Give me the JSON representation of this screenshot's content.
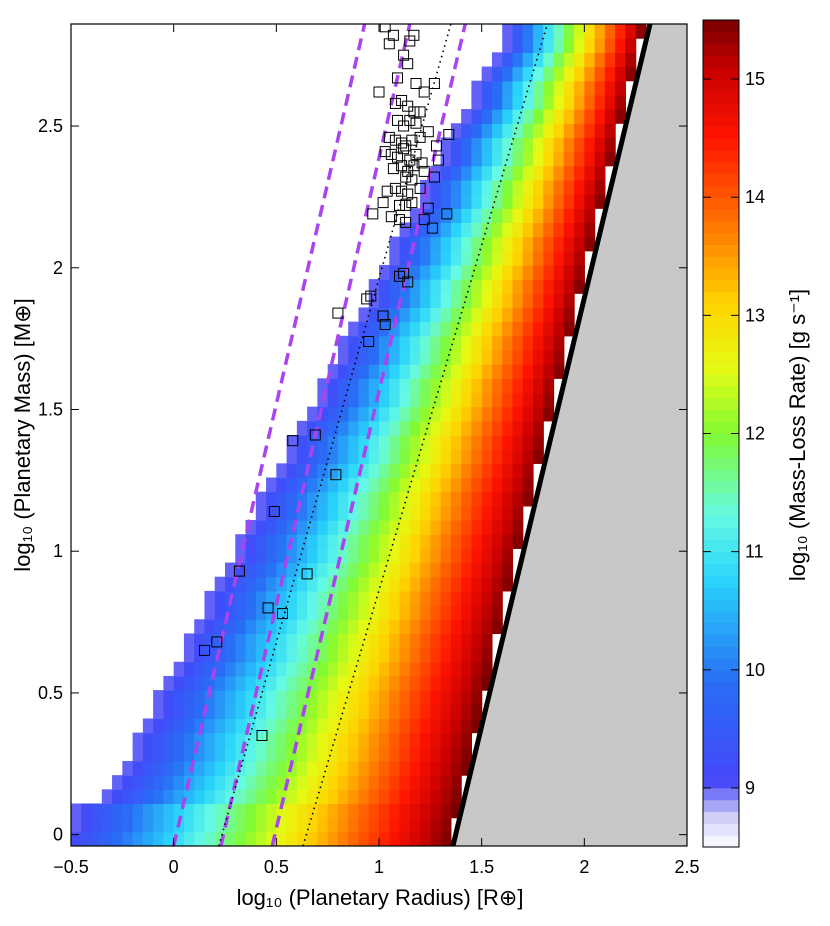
{
  "chart_data": {
    "type": "heatmap",
    "xlabel": "log₁₀ (Planetary Radius) [R⊕]",
    "ylabel": "log₁₀ (Planetary Mass) [M⊕]",
    "colorbar_label": "log₁₀ (Mass-Loss Rate) [g s⁻¹]",
    "xlim": [
      -0.5,
      2.5
    ],
    "ylim": [
      -0.04,
      2.86
    ],
    "colorbar_lim": [
      8.5,
      15.5
    ],
    "x_ticks": [
      -0.5,
      0,
      0.5,
      1,
      1.5,
      2,
      2.5
    ],
    "x_tick_labels": [
      "−0.5",
      "0",
      "0.5",
      "1",
      "1.5",
      "2",
      "2.5"
    ],
    "y_ticks": [
      0,
      0.5,
      1,
      1.5,
      2,
      2.5
    ],
    "y_tick_labels": [
      "0",
      "0.5",
      "1",
      "1.5",
      "2",
      "2.5"
    ],
    "colorbar_ticks": [
      9,
      10,
      11,
      12,
      13,
      14,
      15
    ],
    "colorbar_tick_labels": [
      "9",
      "10",
      "11",
      "12",
      "13",
      "14",
      "15"
    ],
    "colors": {
      "gray_region": "#c8c8c8",
      "dashed_lines": "#aa44ee",
      "solid_boundary": "#000000",
      "dotted_lines": "#000000"
    },
    "heatmap_model": {
      "description_of_fill": "mass-loss rate increases with radius at fixed mass",
      "rate_at_left_edge": 9.0,
      "rate_at_right_edge": 15.5
    },
    "boundary_solid_line": [
      [
        1.36,
        -0.04
      ],
      [
        2.32,
        2.86
      ]
    ],
    "dashed_lines": [
      [
        [
          0.0,
          -0.04
        ],
        [
          0.93,
          2.86
        ]
      ],
      [
        [
          0.23,
          -0.04
        ],
        [
          1.15,
          2.86
        ]
      ],
      [
        [
          0.48,
          -0.04
        ],
        [
          1.42,
          2.86
        ]
      ]
    ],
    "dotted_lines": [
      [
        [
          0.22,
          -0.04
        ],
        [
          1.35,
          2.86
        ]
      ],
      [
        [
          0.63,
          -0.04
        ],
        [
          1.82,
          2.86
        ]
      ]
    ],
    "scatter_points": [
      [
        0.15,
        0.65
      ],
      [
        0.21,
        0.68
      ],
      [
        0.32,
        0.93
      ],
      [
        0.43,
        0.35
      ],
      [
        0.46,
        0.8
      ],
      [
        0.49,
        1.14
      ],
      [
        0.53,
        0.78
      ],
      [
        0.58,
        1.39
      ],
      [
        0.65,
        0.92
      ],
      [
        0.69,
        1.41
      ],
      [
        0.79,
        1.27
      ],
      [
        0.8,
        1.84
      ],
      [
        0.94,
        1.89
      ],
      [
        0.96,
        1.9
      ],
      [
        0.95,
        1.74
      ],
      [
        1.02,
        1.83
      ],
      [
        1.03,
        1.8
      ],
      [
        1.1,
        1.97
      ],
      [
        1.12,
        1.98
      ],
      [
        1.14,
        1.95
      ],
      [
        1.0,
        2.62
      ],
      [
        1.03,
        2.85
      ],
      [
        1.05,
        2.79
      ],
      [
        1.07,
        2.82
      ],
      [
        1.09,
        2.67
      ],
      [
        1.12,
        2.75
      ],
      [
        1.15,
        2.8
      ],
      [
        1.17,
        2.82
      ],
      [
        1.14,
        2.72
      ],
      [
        1.18,
        2.65
      ],
      [
        1.08,
        2.58
      ],
      [
        1.11,
        2.59
      ],
      [
        1.14,
        2.57
      ],
      [
        1.17,
        2.55
      ],
      [
        1.2,
        2.55
      ],
      [
        1.22,
        2.62
      ],
      [
        1.27,
        2.65
      ],
      [
        1.09,
        2.52
      ],
      [
        1.12,
        2.5
      ],
      [
        1.15,
        2.52
      ],
      [
        1.18,
        2.51
      ],
      [
        1.24,
        2.48
      ],
      [
        1.05,
        2.46
      ],
      [
        1.08,
        2.45
      ],
      [
        1.11,
        2.44
      ],
      [
        1.13,
        2.43
      ],
      [
        1.16,
        2.45
      ],
      [
        1.2,
        2.46
      ],
      [
        1.28,
        2.43
      ],
      [
        1.34,
        2.47
      ],
      [
        1.03,
        2.41
      ],
      [
        1.06,
        2.4
      ],
      [
        1.09,
        2.39
      ],
      [
        1.12,
        2.42
      ],
      [
        1.15,
        2.38
      ],
      [
        1.18,
        2.4
      ],
      [
        1.21,
        2.37
      ],
      [
        1.07,
        2.35
      ],
      [
        1.11,
        2.36
      ],
      [
        1.14,
        2.34
      ],
      [
        1.17,
        2.36
      ],
      [
        1.22,
        2.34
      ],
      [
        1.29,
        2.38
      ],
      [
        1.13,
        2.32
      ],
      [
        1.16,
        2.31
      ],
      [
        1.27,
        2.32
      ],
      [
        1.08,
        2.28
      ],
      [
        1.11,
        2.27
      ],
      [
        1.14,
        2.26
      ],
      [
        1.2,
        2.28
      ],
      [
        1.04,
        2.27
      ],
      [
        1.02,
        2.23
      ],
      [
        1.1,
        2.22
      ],
      [
        1.13,
        2.22
      ],
      [
        1.16,
        2.23
      ],
      [
        1.24,
        2.21
      ],
      [
        0.97,
        2.19
      ],
      [
        1.06,
        2.18
      ],
      [
        1.1,
        2.17
      ],
      [
        1.13,
        2.16
      ],
      [
        1.22,
        2.17
      ],
      [
        1.26,
        2.14
      ],
      [
        1.33,
        2.19
      ]
    ]
  }
}
